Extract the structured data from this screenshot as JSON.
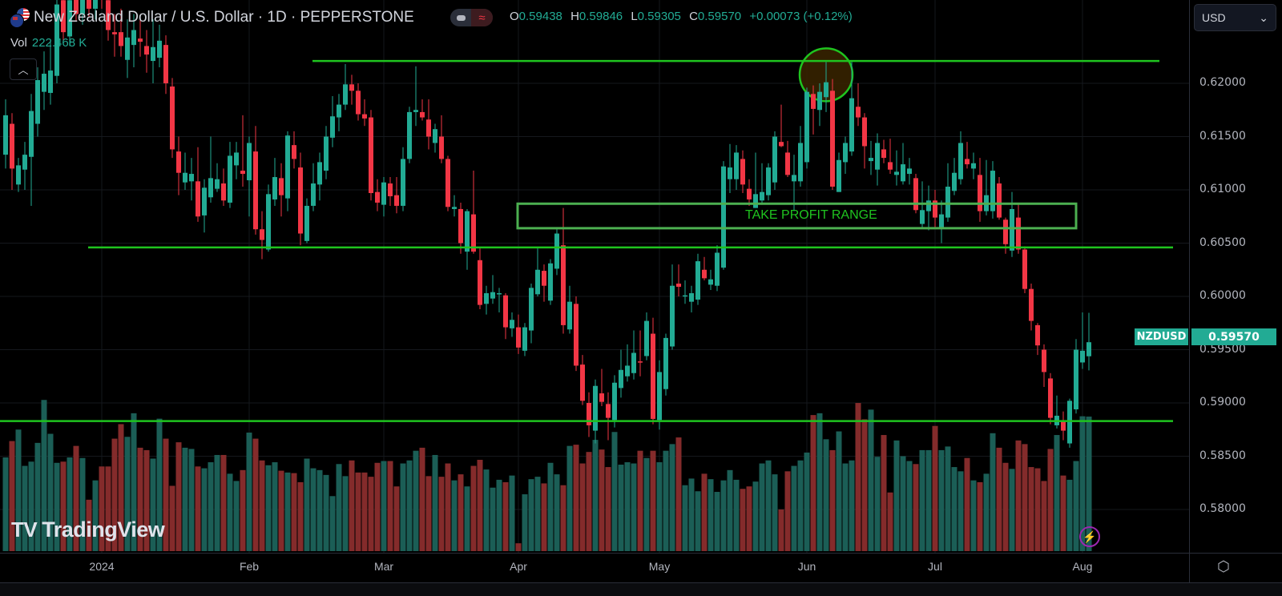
{
  "header": {
    "title": "New Zealand Dollar / U.S. Dollar · 1D · PEPPERSTONE",
    "ohlc": {
      "o_label": "O",
      "o": "0.59438",
      "h_label": "H",
      "h": "0.59846",
      "l_label": "L",
      "l": "0.59305",
      "c_label": "C",
      "c": "0.59570",
      "change": "+0.00073 (+0.12%)"
    },
    "vol_label": "Vol",
    "vol_value": "222.468 K",
    "collapse_icon": "chevron-up-icon",
    "pill_icons": [
      "hide-indicators-icon",
      "market-closed-wave-icon"
    ]
  },
  "price_axis": {
    "currency": "USD",
    "ticks": [
      "0.62000",
      "0.61500",
      "0.61000",
      "0.60500",
      "0.60000",
      "0.59500",
      "0.59000",
      "0.58500",
      "0.58000"
    ],
    "symbol_label": "NZDUSD",
    "last_price": "0.59570"
  },
  "time_axis": {
    "ticks": [
      "2024",
      "Feb",
      "Mar",
      "Apr",
      "May",
      "Jun",
      "Jul",
      "Aug"
    ]
  },
  "branding": {
    "logo": "TradingView"
  },
  "colors": {
    "up": "#22ab94",
    "down": "#f23645",
    "vol_up": "#1b5e56",
    "vol_down": "#842b2b",
    "drawing": "#1fc41f",
    "box": "#4caf50",
    "circle_fill": "#3a2400"
  },
  "chart_data": {
    "type": "candlestick",
    "title": "New Zealand Dollar / U.S. Dollar · 1D · PEPPERSTONE",
    "ylim": [
      0.5755,
      0.6279
    ],
    "grid": true,
    "ohlc": [
      [
        0.6133,
        0.6185,
        0.612,
        0.617
      ],
      [
        0.6162,
        0.6172,
        0.61,
        0.612
      ],
      [
        0.6105,
        0.613,
        0.6098,
        0.6123
      ],
      [
        0.6119,
        0.6145,
        0.61,
        0.6133
      ],
      [
        0.6131,
        0.619,
        0.6085,
        0.6174
      ],
      [
        0.6162,
        0.6215,
        0.615,
        0.6203
      ],
      [
        0.6192,
        0.623,
        0.6175,
        0.6209
      ],
      [
        0.6191,
        0.624,
        0.618,
        0.6212
      ],
      [
        0.6207,
        0.628,
        0.62,
        0.6274
      ],
      [
        0.6278,
        0.629,
        0.624,
        0.6248
      ],
      [
        0.6244,
        0.629,
        0.6235,
        0.6278
      ],
      [
        0.6285,
        0.63,
        0.6258,
        0.6265
      ],
      [
        0.6265,
        0.63,
        0.6255,
        0.629
      ],
      [
        0.629,
        0.63,
        0.6262,
        0.627
      ],
      [
        0.627,
        0.63,
        0.626,
        0.6295
      ],
      [
        0.6295,
        0.63,
        0.627,
        0.628
      ],
      [
        0.6278,
        0.629,
        0.624,
        0.625
      ],
      [
        0.6248,
        0.6265,
        0.6225,
        0.6246
      ],
      [
        0.6248,
        0.627,
        0.6225,
        0.6235
      ],
      [
        0.6222,
        0.626,
        0.6205,
        0.6243
      ],
      [
        0.6236,
        0.6265,
        0.6215,
        0.625
      ],
      [
        0.6242,
        0.626,
        0.6225,
        0.6239
      ],
      [
        0.6235,
        0.625,
        0.621,
        0.6227
      ],
      [
        0.6221,
        0.626,
        0.62,
        0.6234
      ],
      [
        0.6224,
        0.6255,
        0.6215,
        0.624
      ],
      [
        0.6236,
        0.6245,
        0.619,
        0.62
      ],
      [
        0.6197,
        0.6205,
        0.613,
        0.6138
      ],
      [
        0.6136,
        0.615,
        0.6095,
        0.6116
      ],
      [
        0.6107,
        0.6135,
        0.61,
        0.6116
      ],
      [
        0.6108,
        0.613,
        0.609,
        0.6115
      ],
      [
        0.6108,
        0.614,
        0.607,
        0.6075
      ],
      [
        0.6076,
        0.611,
        0.606,
        0.6102
      ],
      [
        0.6093,
        0.615,
        0.6088,
        0.6111
      ],
      [
        0.6101,
        0.6125,
        0.6098,
        0.611
      ],
      [
        0.6106,
        0.612,
        0.6085,
        0.609
      ],
      [
        0.6088,
        0.6145,
        0.6083,
        0.6132
      ],
      [
        0.6123,
        0.6145,
        0.611,
        0.6135
      ],
      [
        0.6118,
        0.617,
        0.6103,
        0.6115
      ],
      [
        0.6109,
        0.615,
        0.6075,
        0.6144
      ],
      [
        0.6136,
        0.616,
        0.6058,
        0.6063
      ],
      [
        0.6063,
        0.608,
        0.6035,
        0.6053
      ],
      [
        0.6044,
        0.6105,
        0.6042,
        0.6096
      ],
      [
        0.6091,
        0.613,
        0.6085,
        0.6112
      ],
      [
        0.6111,
        0.6125,
        0.6075,
        0.6095
      ],
      [
        0.6092,
        0.6155,
        0.608,
        0.6151
      ],
      [
        0.6142,
        0.6155,
        0.612,
        0.6129
      ],
      [
        0.6121,
        0.6135,
        0.6048,
        0.6059
      ],
      [
        0.6052,
        0.6092,
        0.605,
        0.6085
      ],
      [
        0.6085,
        0.6125,
        0.608,
        0.6106
      ],
      [
        0.6105,
        0.6135,
        0.609,
        0.6126
      ],
      [
        0.6118,
        0.616,
        0.611,
        0.615
      ],
      [
        0.6149,
        0.6188,
        0.614,
        0.6169
      ],
      [
        0.6168,
        0.619,
        0.6155,
        0.618
      ],
      [
        0.618,
        0.6218,
        0.6175,
        0.6199
      ],
      [
        0.6199,
        0.6208,
        0.618,
        0.6193
      ],
      [
        0.6193,
        0.62,
        0.6165,
        0.6171
      ],
      [
        0.6171,
        0.6185,
        0.616,
        0.6167
      ],
      [
        0.6168,
        0.6175,
        0.609,
        0.6097
      ],
      [
        0.6098,
        0.611,
        0.608,
        0.6088
      ],
      [
        0.6086,
        0.6112,
        0.6075,
        0.6107
      ],
      [
        0.6106,
        0.6112,
        0.6085,
        0.6094
      ],
      [
        0.6095,
        0.6112,
        0.6078,
        0.6085
      ],
      [
        0.6085,
        0.614,
        0.608,
        0.6129
      ],
      [
        0.6129,
        0.6178,
        0.6125,
        0.6173
      ],
      [
        0.6173,
        0.6216,
        0.616,
        0.6175
      ],
      [
        0.6173,
        0.6185,
        0.6165,
        0.6168
      ],
      [
        0.6166,
        0.6185,
        0.6138,
        0.615
      ],
      [
        0.6144,
        0.6162,
        0.6135,
        0.6157
      ],
      [
        0.615,
        0.617,
        0.6125,
        0.6129
      ],
      [
        0.6129,
        0.6132,
        0.608,
        0.6084
      ],
      [
        0.6082,
        0.6095,
        0.6075,
        0.6084
      ],
      [
        0.6082,
        0.6088,
        0.604,
        0.605
      ],
      [
        0.6042,
        0.6082,
        0.6025,
        0.608
      ],
      [
        0.6077,
        0.6118,
        0.604,
        0.6042
      ],
      [
        0.6034,
        0.6045,
        0.5988,
        0.5992
      ],
      [
        0.5993,
        0.601,
        0.5983,
        0.6003
      ],
      [
        0.5998,
        0.602,
        0.5993,
        0.6004
      ],
      [
        0.6002,
        0.6008,
        0.5985,
        0.6003
      ],
      [
        0.6001,
        0.6003,
        0.596,
        0.5971
      ],
      [
        0.597,
        0.5985,
        0.5962,
        0.5978
      ],
      [
        0.5971,
        0.5983,
        0.5946,
        0.5952
      ],
      [
        0.5949,
        0.5975,
        0.5944,
        0.5971
      ],
      [
        0.5968,
        0.6012,
        0.5956,
        0.6008
      ],
      [
        0.6002,
        0.6045,
        0.6,
        0.6025
      ],
      [
        0.6024,
        0.603,
        0.5995,
        0.601
      ],
      [
        0.5996,
        0.6035,
        0.5992,
        0.6031
      ],
      [
        0.6026,
        0.6063,
        0.602,
        0.6059
      ],
      [
        0.6048,
        0.6083,
        0.5965,
        0.5973
      ],
      [
        0.5969,
        0.601,
        0.5965,
        0.5995
      ],
      [
        0.5993,
        0.6,
        0.593,
        0.5935
      ],
      [
        0.5936,
        0.5945,
        0.5898,
        0.5902
      ],
      [
        0.59,
        0.591,
        0.5868,
        0.5879
      ],
      [
        0.5874,
        0.5922,
        0.5862,
        0.5916
      ],
      [
        0.5909,
        0.5932,
        0.5897,
        0.5901
      ],
      [
        0.5899,
        0.591,
        0.5865,
        0.5886
      ],
      [
        0.5884,
        0.5926,
        0.5877,
        0.5919
      ],
      [
        0.5914,
        0.595,
        0.5905,
        0.5931
      ],
      [
        0.5925,
        0.5955,
        0.592,
        0.5935
      ],
      [
        0.5928,
        0.5968,
        0.5922,
        0.5947
      ],
      [
        0.5939,
        0.5968,
        0.5925,
        0.5938
      ],
      [
        0.5944,
        0.5985,
        0.594,
        0.5977
      ],
      [
        0.5965,
        0.598,
        0.588,
        0.5885
      ],
      [
        0.5884,
        0.594,
        0.5875,
        0.5929
      ],
      [
        0.5913,
        0.5965,
        0.5907,
        0.5961
      ],
      [
        0.5953,
        0.603,
        0.595,
        0.601
      ],
      [
        0.6012,
        0.603,
        0.6,
        0.6009
      ],
      [
        0.6,
        0.6015,
        0.5993,
        0.6001
      ],
      [
        0.5995,
        0.601,
        0.5985,
        0.6003
      ],
      [
        0.5997,
        0.604,
        0.5992,
        0.6033
      ],
      [
        0.6025,
        0.6037,
        0.6015,
        0.6017
      ],
      [
        0.6011,
        0.6025,
        0.6006,
        0.6016
      ],
      [
        0.601,
        0.6048,
        0.6005,
        0.6041
      ],
      [
        0.6027,
        0.6127,
        0.6025,
        0.6122
      ],
      [
        0.611,
        0.6143,
        0.6097,
        0.6121
      ],
      [
        0.611,
        0.6142,
        0.61,
        0.6135
      ],
      [
        0.6129,
        0.6137,
        0.6097,
        0.6105
      ],
      [
        0.6101,
        0.611,
        0.6085,
        0.6091
      ],
      [
        0.6083,
        0.6135,
        0.6083,
        0.6096
      ],
      [
        0.609,
        0.6125,
        0.6086,
        0.6098
      ],
      [
        0.6095,
        0.6125,
        0.609,
        0.6121
      ],
      [
        0.6107,
        0.6155,
        0.61,
        0.615
      ],
      [
        0.6145,
        0.618,
        0.614,
        0.6141
      ],
      [
        0.6135,
        0.6146,
        0.6112,
        0.6114
      ],
      [
        0.6108,
        0.6133,
        0.608,
        0.6114
      ],
      [
        0.6108,
        0.616,
        0.6103,
        0.6144
      ],
      [
        0.6126,
        0.6196,
        0.612,
        0.6192
      ],
      [
        0.619,
        0.6198,
        0.6152,
        0.6176
      ],
      [
        0.6175,
        0.62,
        0.616,
        0.6192
      ],
      [
        0.6187,
        0.622,
        0.6173,
        0.6201
      ],
      [
        0.6193,
        0.6204,
        0.61,
        0.6103
      ],
      [
        0.6098,
        0.6135,
        0.6098,
        0.6128
      ],
      [
        0.6126,
        0.615,
        0.6115,
        0.6144
      ],
      [
        0.6136,
        0.6221,
        0.6132,
        0.6186
      ],
      [
        0.6178,
        0.62,
        0.616,
        0.6168
      ],
      [
        0.6168,
        0.6172,
        0.612,
        0.6141
      ],
      [
        0.6127,
        0.6146,
        0.6114,
        0.613
      ],
      [
        0.6119,
        0.6153,
        0.6104,
        0.6144
      ],
      [
        0.6138,
        0.6147,
        0.6125,
        0.613
      ],
      [
        0.6126,
        0.6148,
        0.6115,
        0.6119
      ],
      [
        0.6114,
        0.6137,
        0.6104,
        0.6117
      ],
      [
        0.6108,
        0.6144,
        0.6105,
        0.6124
      ],
      [
        0.6115,
        0.613,
        0.6105,
        0.612
      ],
      [
        0.6111,
        0.6115,
        0.6078,
        0.6081
      ],
      [
        0.6068,
        0.6108,
        0.6065,
        0.6081
      ],
      [
        0.608,
        0.6104,
        0.6062,
        0.609
      ],
      [
        0.609,
        0.61,
        0.6065,
        0.6074
      ],
      [
        0.6065,
        0.609,
        0.605,
        0.6077
      ],
      [
        0.6074,
        0.6125,
        0.607,
        0.6103
      ],
      [
        0.6099,
        0.613,
        0.6095,
        0.6116
      ],
      [
        0.611,
        0.6155,
        0.6105,
        0.6144
      ],
      [
        0.6129,
        0.6145,
        0.612,
        0.6124
      ],
      [
        0.612,
        0.6135,
        0.611,
        0.6125
      ],
      [
        0.6114,
        0.613,
        0.607,
        0.608
      ],
      [
        0.608,
        0.6128,
        0.6076,
        0.6095
      ],
      [
        0.608,
        0.6127,
        0.6073,
        0.6118
      ],
      [
        0.6106,
        0.6112,
        0.6072,
        0.6074
      ],
      [
        0.6072,
        0.6074,
        0.604,
        0.6049
      ],
      [
        0.6043,
        0.6098,
        0.6037,
        0.6082
      ],
      [
        0.6074,
        0.6087,
        0.604,
        0.6044
      ],
      [
        0.6044,
        0.6047,
        0.6003,
        0.6007
      ],
      [
        0.6007,
        0.6012,
        0.5968,
        0.5977
      ],
      [
        0.5973,
        0.5975,
        0.5945,
        0.5954
      ],
      [
        0.595,
        0.5955,
        0.5915,
        0.5929
      ],
      [
        0.5923,
        0.5928,
        0.588,
        0.5886
      ],
      [
        0.5879,
        0.5907,
        0.5876,
        0.5888
      ],
      [
        0.5883,
        0.5892,
        0.5865,
        0.5874
      ],
      [
        0.5862,
        0.5904,
        0.5858,
        0.5902
      ],
      [
        0.5894,
        0.596,
        0.589,
        0.595
      ],
      [
        0.5938,
        0.5985,
        0.5932,
        0.5949
      ],
      [
        0.59438,
        0.59846,
        0.59305,
        0.5957
      ]
    ],
    "volume_k": [
      155,
      182,
      201,
      141,
      148,
      179,
      250,
      194,
      146,
      148,
      155,
      174,
      154,
      85,
      117,
      140,
      140,
      186,
      210,
      189,
      228,
      171,
      167,
      153,
      219,
      186,
      108,
      180,
      171,
      169,
      140,
      137,
      147,
      159,
      159,
      128,
      116,
      134,
      196,
      186,
      150,
      142,
      147,
      133,
      130,
      129,
      114,
      153,
      137,
      134,
      126,
      91,
      144,
      124,
      150,
      130,
      130,
      123,
      146,
      149,
      149,
      107,
      145,
      150,
      166,
      171,
      124,
      159,
      123,
      145,
      117,
      127,
      107,
      141,
      151,
      135,
      105,
      118,
      114,
      125,
      13,
      94,
      119,
      123,
      112,
      146,
      127,
      109,
      174,
      176,
      145,
      164,
      184,
      168,
      139,
      197,
      143,
      147,
      145,
      166,
      154,
      166,
      147,
      166,
      177,
      188,
      109,
      120,
      99,
      128,
      119,
      98,
      117,
      134,
      118,
      103,
      107,
      115,
      145,
      150,
      127,
      69,
      132,
      141,
      150,
      163,
      225,
      228,
      185,
      167,
      198,
      145,
      150,
      245,
      218,
      234,
      156,
      192,
      97,
      183,
      157,
      149,
      144,
      167,
      167,
      207,
      167,
      173,
      139,
      132,
      154,
      117,
      114,
      128,
      195,
      171,
      146,
      136,
      183,
      177,
      139,
      137,
      116,
      169,
      192,
      125,
      118,
      149,
      223,
      222.468
    ],
    "annotations": {
      "horizontal_levels": [
        0.6221,
        0.6046,
        0.5883
      ],
      "take_profit_range": {
        "label": "TAKE PROFIT RANGE",
        "top": 0.6087,
        "bottom": 0.6064
      },
      "highlight_circle_price": 0.6208
    }
  }
}
